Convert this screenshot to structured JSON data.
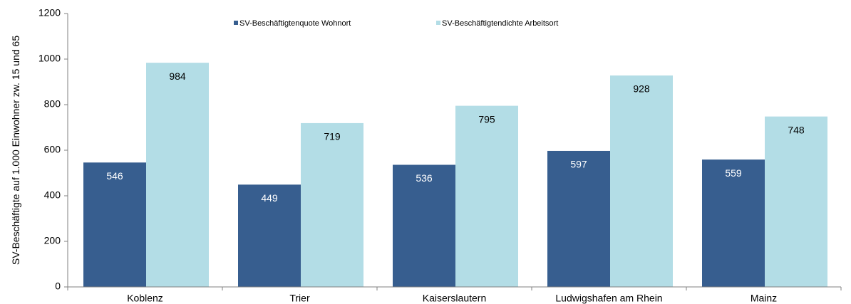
{
  "chart_data": {
    "type": "bar",
    "ylabel": "SV-Beschäftigte auf 1.000 Einwohner zw. 15 und 65",
    "categories": [
      "Koblenz",
      "Trier",
      "Kaiserslautern",
      "Ludwigshafen am Rhein",
      "Mainz"
    ],
    "series": [
      {
        "name": "SV-Beschäftigtenquote Wohnort",
        "color": "#375e8f",
        "label_color": "#ffffff",
        "values": [
          546,
          449,
          536,
          597,
          559
        ]
      },
      {
        "name": "SV-Beschäftigtendichte Arbeitsort",
        "color": "#b3dde6",
        "label_color": "#000000",
        "values": [
          984,
          719,
          795,
          928,
          748
        ]
      }
    ],
    "ylim": [
      0,
      1200
    ],
    "yticks": [
      0,
      200,
      400,
      600,
      800,
      1000,
      1200
    ],
    "grid": false,
    "legend": "top"
  }
}
